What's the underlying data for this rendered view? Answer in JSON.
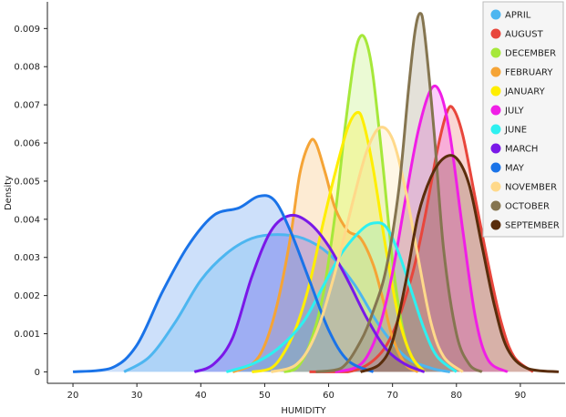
{
  "chart_data": {
    "type": "area",
    "title": "",
    "xlabel": "HUMIDITY",
    "ylabel": "Density",
    "xlim": [
      16,
      97
    ],
    "ylim": [
      -0.0003,
      0.0097
    ],
    "xticks": [
      20,
      30,
      40,
      50,
      60,
      70,
      80,
      90,
      100
    ],
    "yticks": [
      0,
      0.001,
      0.002,
      0.003,
      0.004,
      0.005,
      0.006,
      0.007,
      0.008,
      0.009
    ],
    "ytick_labels": [
      "0",
      "0.001",
      "0.002",
      "0.003",
      "0.004",
      "0.005",
      "0.006",
      "0.007",
      "0.008",
      "0.009"
    ],
    "grid": false,
    "legend_position": "top-right",
    "series": [
      {
        "name": "APRIL",
        "color": "#4db6f0",
        "points": [
          [
            28,
            0
          ],
          [
            32,
            0.0004
          ],
          [
            36,
            0.0013
          ],
          [
            40,
            0.0024
          ],
          [
            44,
            0.0031
          ],
          [
            48,
            0.0035
          ],
          [
            52,
            0.0036
          ],
          [
            56,
            0.0035
          ],
          [
            60,
            0.0031
          ],
          [
            64,
            0.0023
          ],
          [
            68,
            0.0012
          ],
          [
            72,
            0.0004
          ],
          [
            76,
            0.0001
          ],
          [
            79,
            0
          ]
        ]
      },
      {
        "name": "AUGUST",
        "color": "#e8463c",
        "points": [
          [
            57,
            0
          ],
          [
            63,
            0
          ],
          [
            67,
            0.0003
          ],
          [
            70,
            0.001
          ],
          [
            73,
            0.0025
          ],
          [
            75,
            0.004
          ],
          [
            77,
            0.0058
          ],
          [
            78.5,
            0.0068
          ],
          [
            79.5,
            0.0069
          ],
          [
            81,
            0.0062
          ],
          [
            83,
            0.0045
          ],
          [
            85,
            0.0028
          ],
          [
            87,
            0.0013
          ],
          [
            89,
            0.0004
          ],
          [
            92,
            0
          ]
        ]
      },
      {
        "name": "DECEMBER",
        "color": "#a6e83a",
        "points": [
          [
            53,
            0
          ],
          [
            55,
            0.0001
          ],
          [
            57,
            0.0007
          ],
          [
            59,
            0.0019
          ],
          [
            61,
            0.0041
          ],
          [
            62.5,
            0.0063
          ],
          [
            64,
            0.0082
          ],
          [
            65,
            0.0088
          ],
          [
            66,
            0.0086
          ],
          [
            67,
            0.0077
          ],
          [
            68.5,
            0.0054
          ],
          [
            70,
            0.0029
          ],
          [
            71.5,
            0.0012
          ],
          [
            73,
            0.0004
          ],
          [
            75,
            0
          ]
        ]
      },
      {
        "name": "FEBRUARY",
        "color": "#f5a436",
        "points": [
          [
            45,
            0
          ],
          [
            48,
            0.0002
          ],
          [
            50,
            0.0007
          ],
          [
            52,
            0.0018
          ],
          [
            54,
            0.0035
          ],
          [
            55.5,
            0.0052
          ],
          [
            57,
            0.006
          ],
          [
            58,
            0.006
          ],
          [
            59.5,
            0.0052
          ],
          [
            61,
            0.0043
          ],
          [
            63,
            0.0037
          ],
          [
            65,
            0.0035
          ],
          [
            67,
            0.0028
          ],
          [
            68.5,
            0.0019
          ],
          [
            70,
            0.0009
          ],
          [
            72,
            0.0002
          ],
          [
            74,
            0
          ]
        ]
      },
      {
        "name": "JANUARY",
        "color": "#ffee00",
        "points": [
          [
            48,
            0
          ],
          [
            51,
            0.0001
          ],
          [
            53,
            0.0005
          ],
          [
            55,
            0.0012
          ],
          [
            57,
            0.0023
          ],
          [
            59,
            0.0038
          ],
          [
            61,
            0.0052
          ],
          [
            63,
            0.0064
          ],
          [
            64.5,
            0.0068
          ],
          [
            65.5,
            0.0065
          ],
          [
            67,
            0.0053
          ],
          [
            69,
            0.0032
          ],
          [
            71,
            0.0014
          ],
          [
            73,
            0.0004
          ],
          [
            75,
            0
          ]
        ]
      },
      {
        "name": "JULY",
        "color": "#f01ee6",
        "points": [
          [
            61,
            0
          ],
          [
            64,
            0.0001
          ],
          [
            66,
            0.0004
          ],
          [
            68,
            0.0012
          ],
          [
            70,
            0.0026
          ],
          [
            72,
            0.0045
          ],
          [
            74,
            0.0063
          ],
          [
            76,
            0.0074
          ],
          [
            77.5,
            0.0073
          ],
          [
            79,
            0.0062
          ],
          [
            81,
            0.0037
          ],
          [
            83,
            0.0014
          ],
          [
            85,
            0.0003
          ],
          [
            88,
            0
          ]
        ]
      },
      {
        "name": "JUNE",
        "color": "#2ef0f0",
        "points": [
          [
            44,
            0
          ],
          [
            48,
            0.0002
          ],
          [
            52,
            0.0006
          ],
          [
            56,
            0.0013
          ],
          [
            59,
            0.0022
          ],
          [
            62,
            0.0031
          ],
          [
            65,
            0.0037
          ],
          [
            67,
            0.0039
          ],
          [
            69,
            0.0038
          ],
          [
            71,
            0.0031
          ],
          [
            73,
            0.0021
          ],
          [
            75,
            0.0011
          ],
          [
            77,
            0.0004
          ],
          [
            80,
            0
          ]
        ]
      },
      {
        "name": "MARCH",
        "color": "#7a18e8",
        "points": [
          [
            39,
            0
          ],
          [
            42,
            0.0002
          ],
          [
            45,
            0.0009
          ],
          [
            48,
            0.0025
          ],
          [
            51,
            0.0037
          ],
          [
            54,
            0.0041
          ],
          [
            57,
            0.0039
          ],
          [
            60,
            0.0033
          ],
          [
            63,
            0.0024
          ],
          [
            66,
            0.0014
          ],
          [
            69,
            0.0006
          ],
          [
            72,
            0.0002
          ],
          [
            75,
            0
          ]
        ]
      },
      {
        "name": "MAY",
        "color": "#1a73e8",
        "points": [
          [
            20,
            0
          ],
          [
            26,
            0.0001
          ],
          [
            30,
            0.0007
          ],
          [
            34,
            0.0021
          ],
          [
            38,
            0.0033
          ],
          [
            42,
            0.0041
          ],
          [
            46,
            0.0043
          ],
          [
            49,
            0.0046
          ],
          [
            51.5,
            0.0045
          ],
          [
            54,
            0.0037
          ],
          [
            57,
            0.0024
          ],
          [
            60,
            0.0011
          ],
          [
            63,
            0.0003
          ],
          [
            67,
            0
          ]
        ]
      },
      {
        "name": "NOVEMBER",
        "color": "#ffd98a",
        "points": [
          [
            51,
            0
          ],
          [
            55,
            0.0002
          ],
          [
            58,
            0.001
          ],
          [
            61,
            0.0026
          ],
          [
            64,
            0.0046
          ],
          [
            66,
            0.0058
          ],
          [
            68,
            0.0064
          ],
          [
            70,
            0.0061
          ],
          [
            72,
            0.0048
          ],
          [
            74,
            0.003
          ],
          [
            76,
            0.0013
          ],
          [
            78,
            0.0004
          ],
          [
            81,
            0
          ]
        ]
      },
      {
        "name": "OCTOBER",
        "color": "#857550",
        "points": [
          [
            58,
            0
          ],
          [
            62,
            0.0001
          ],
          [
            65,
            0.0008
          ],
          [
            67,
            0.0016
          ],
          [
            69,
            0.0027
          ],
          [
            71,
            0.0048
          ],
          [
            72.5,
            0.0074
          ],
          [
            73.5,
            0.0089
          ],
          [
            74.3,
            0.0094
          ],
          [
            75,
            0.0089
          ],
          [
            76.5,
            0.0063
          ],
          [
            78,
            0.0032
          ],
          [
            80,
            0.001
          ],
          [
            82,
            0.0002
          ],
          [
            84,
            0
          ]
        ]
      },
      {
        "name": "SEPTEMBER",
        "color": "#5a2d0c",
        "points": [
          [
            65,
            0
          ],
          [
            68,
            0.0002
          ],
          [
            70,
            0.0008
          ],
          [
            72,
            0.0023
          ],
          [
            74,
            0.0041
          ],
          [
            76,
            0.0051
          ],
          [
            78,
            0.0056
          ],
          [
            80,
            0.0056
          ],
          [
            82,
            0.0049
          ],
          [
            84,
            0.0033
          ],
          [
            86,
            0.0017
          ],
          [
            88,
            0.0006
          ],
          [
            91,
            0.0001
          ],
          [
            96,
            0
          ]
        ]
      }
    ]
  }
}
